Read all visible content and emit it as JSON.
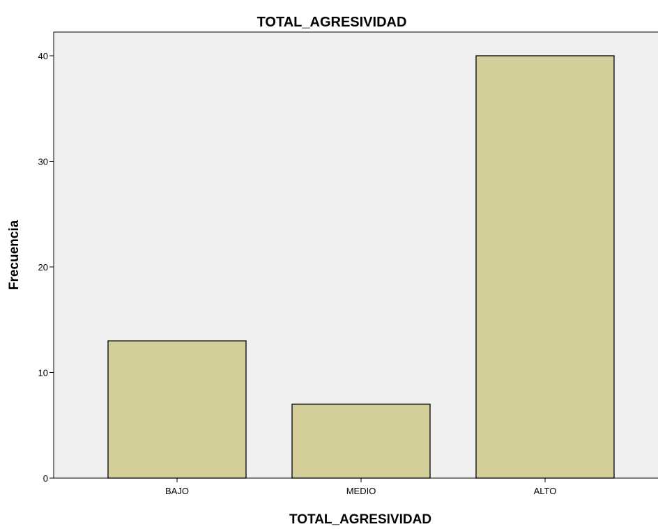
{
  "chart_data": {
    "type": "bar",
    "title": "TOTAL_AGRESIVIDAD",
    "xlabel": "TOTAL_AGRESIVIDAD",
    "ylabel": "Frecuencia",
    "categories": [
      "BAJO",
      "MEDIO",
      "ALTO"
    ],
    "values": [
      13,
      7,
      40
    ],
    "ylim": [
      0,
      42
    ],
    "yticks": [
      0,
      10,
      20,
      30,
      40
    ],
    "grid": false,
    "legend": "none"
  },
  "colors": {
    "bar_fill": "#d4cf9a",
    "bar_stroke": "#000000",
    "plot_background": "#f0f0f0",
    "page_background": "#ffffff"
  }
}
